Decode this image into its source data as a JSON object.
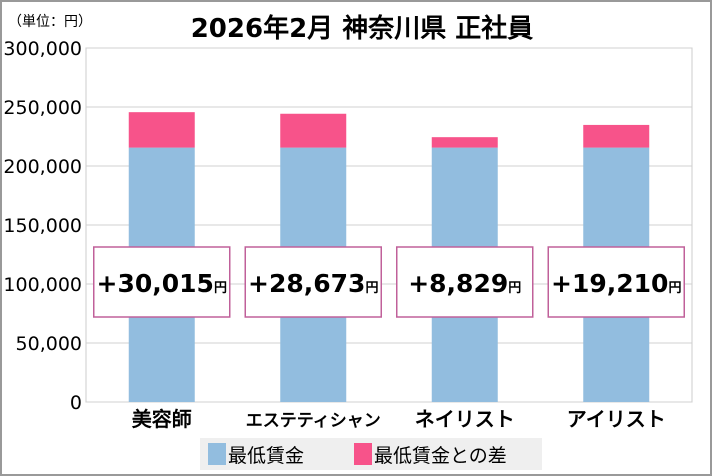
{
  "chart_data": {
    "type": "bar",
    "stacked": true,
    "title": "2026年2月 神奈川県 正社員",
    "unit_label": "（単位：円）",
    "categories": [
      "美容師",
      "エステティシャン",
      "ネイリスト",
      "アイリスト"
    ],
    "series": [
      {
        "name": "最低賃金",
        "color": "#92bddf",
        "values": [
          215600,
          215600,
          215600,
          215600
        ]
      },
      {
        "name": "最低賃金との差",
        "color": "#f7538a",
        "values": [
          30015,
          28673,
          8829,
          19210
        ]
      }
    ],
    "data_labels": [
      "+30,015",
      "+28,673",
      "+8,829",
      "+19,210"
    ],
    "data_label_unit": "円",
    "ylim": [
      0,
      300000
    ],
    "yticks": [
      "0",
      "50,000",
      "100,000",
      "150,000",
      "200,000",
      "250,000",
      "300,000"
    ],
    "grid": true,
    "legend": "bottom"
  }
}
